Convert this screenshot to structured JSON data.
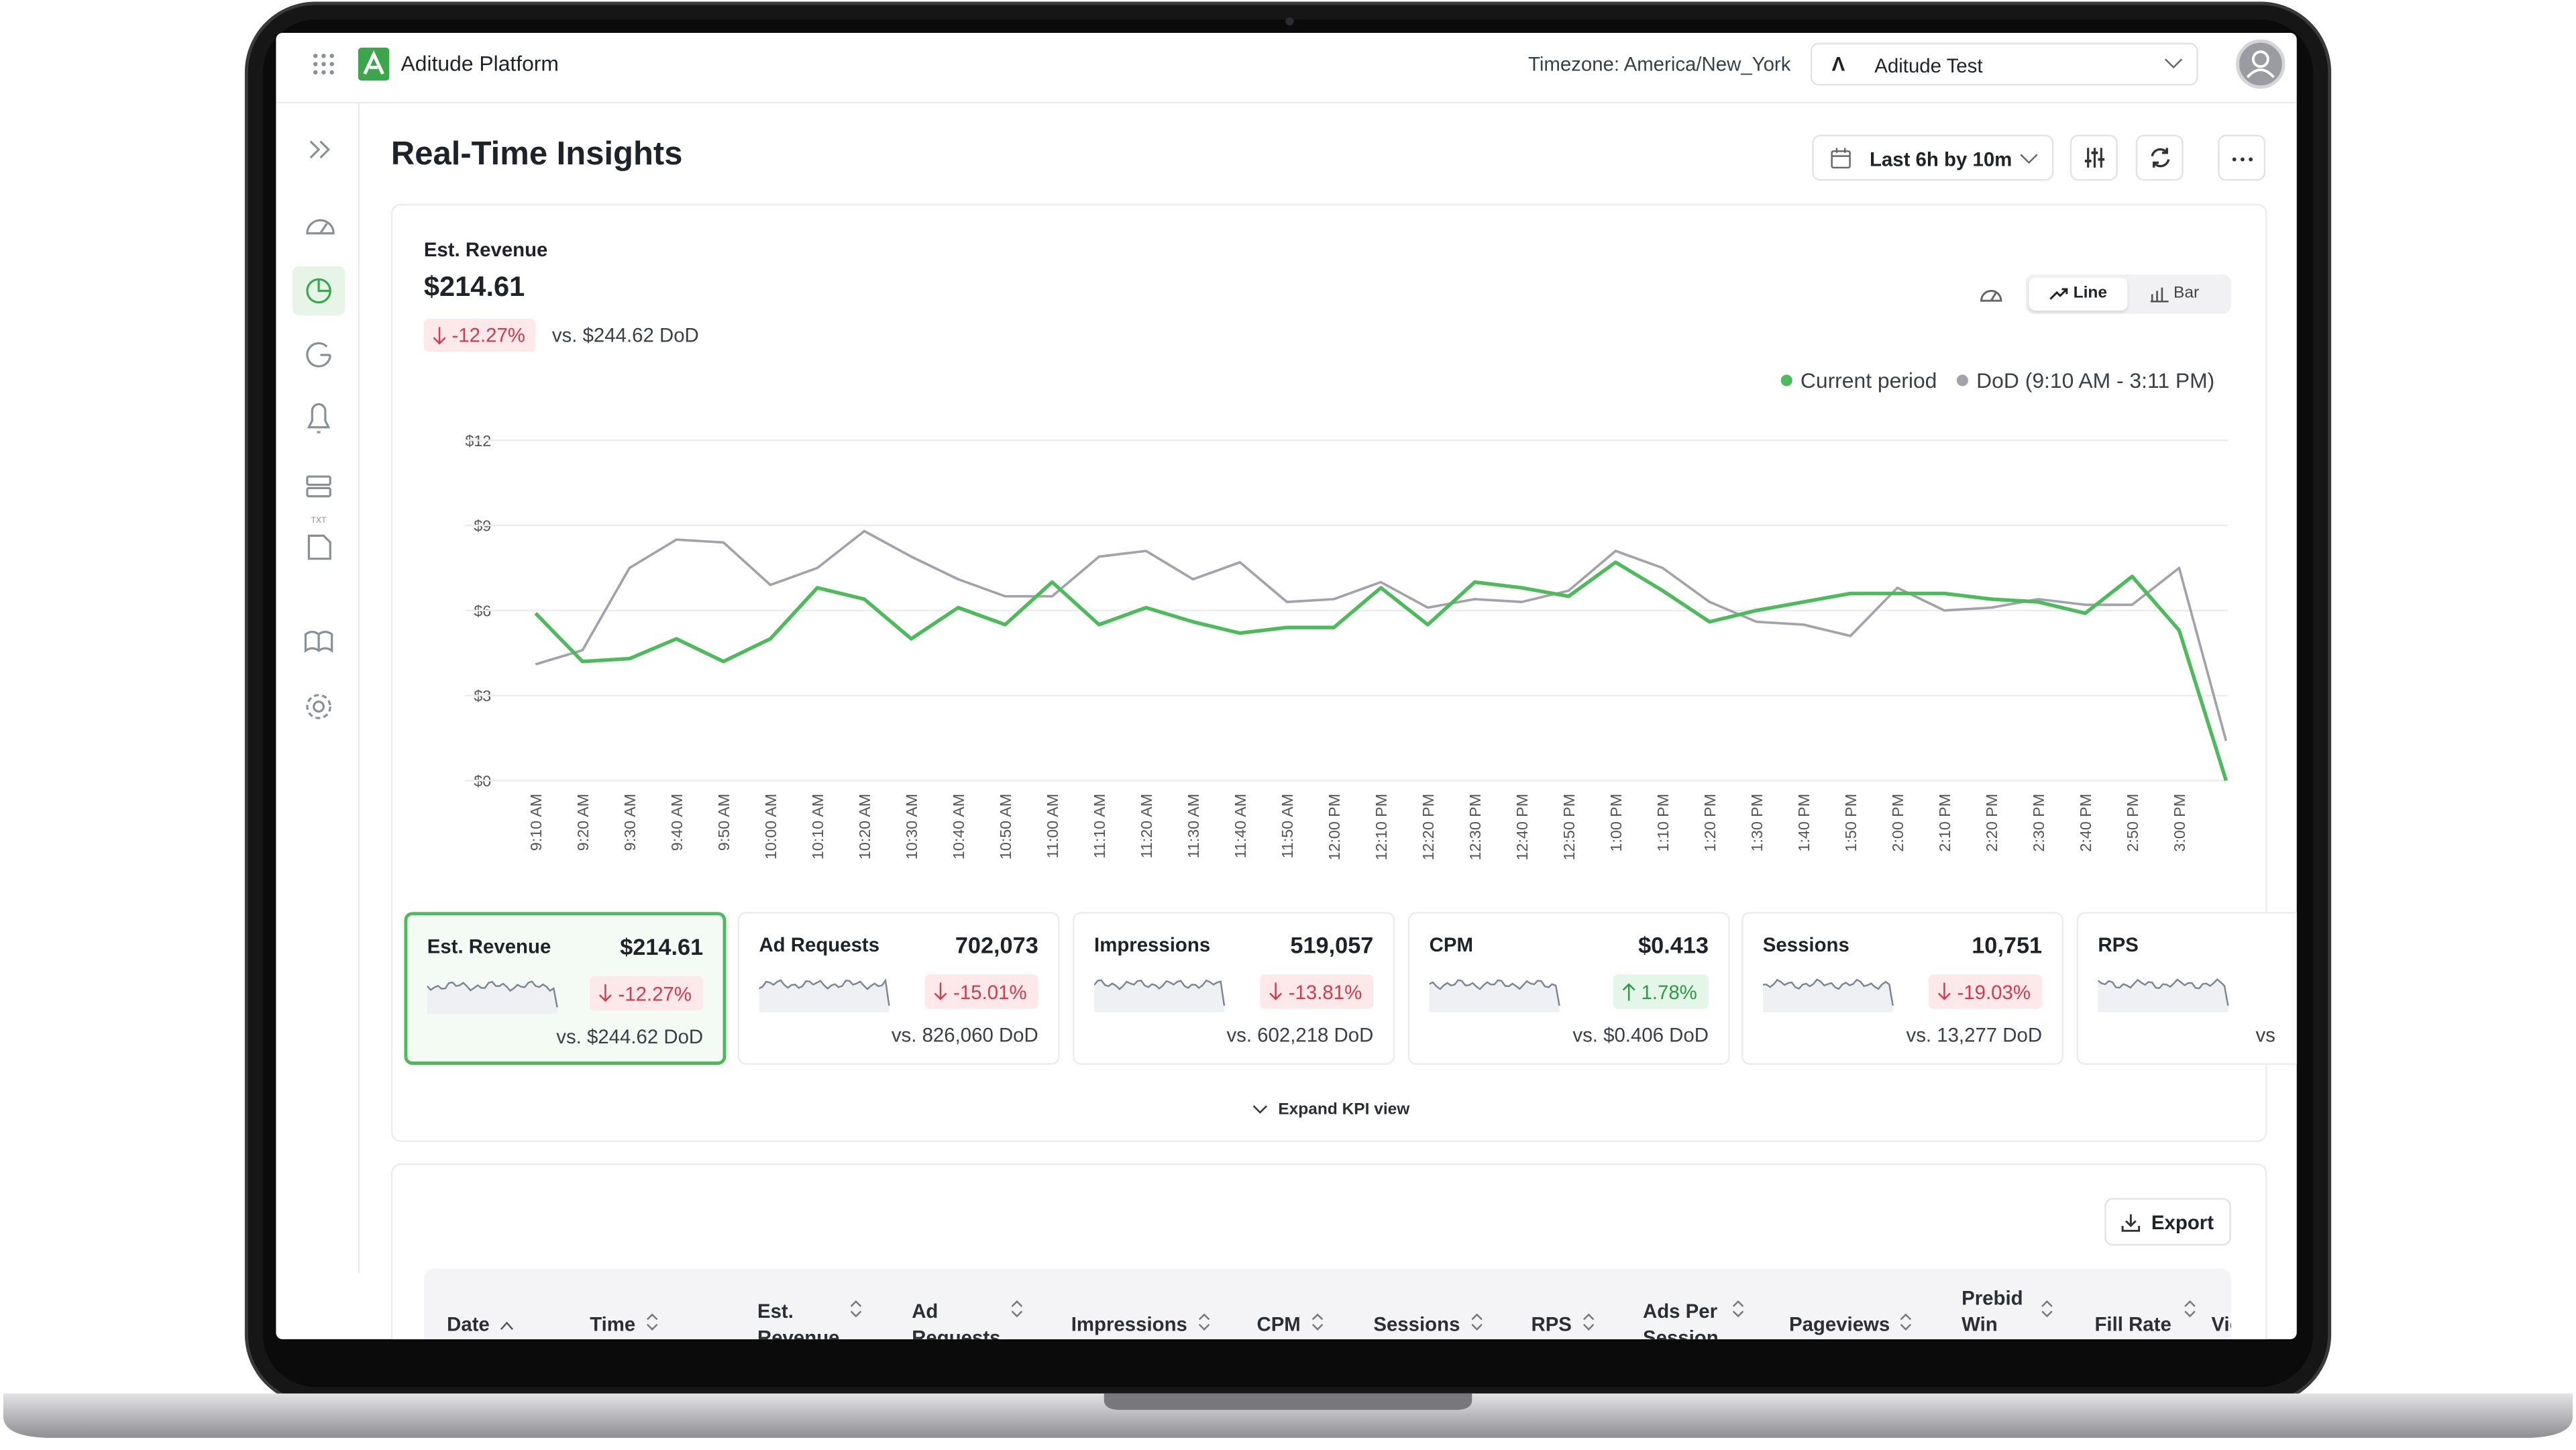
{
  "header": {
    "brand": "Aditude Platform",
    "timezone": "Timezone: America/New_York",
    "account": "Aditude Test"
  },
  "page": {
    "title": "Real-Time Insights",
    "range": "Last 6h by 10m"
  },
  "metric": {
    "label": "Est. Revenue",
    "value": "$214.61",
    "change": "-12.27%",
    "comparison": "vs. $244.62 DoD"
  },
  "toggle": [
    "Line",
    "Bar"
  ],
  "chart_data": {
    "type": "line",
    "categories": [
      "9:10 AM",
      "9:20 AM",
      "9:30 AM",
      "9:40 AM",
      "9:50 AM",
      "10:00 AM",
      "10:10 AM",
      "10:20 AM",
      "10:30 AM",
      "10:40 AM",
      "10:50 AM",
      "11:00 AM",
      "11:10 AM",
      "11:20 AM",
      "11:30 AM",
      "11:40 AM",
      "11:50 AM",
      "12:00 PM",
      "12:10 PM",
      "12:20 PM",
      "12:30 PM",
      "12:40 PM",
      "12:50 PM",
      "1:00 PM",
      "1:10 PM",
      "1:20 PM",
      "1:30 PM",
      "1:40 PM",
      "1:50 PM",
      "2:00 PM",
      "2:10 PM",
      "2:20 PM",
      "2:30 PM",
      "2:40 PM",
      "2:50 PM",
      "3:00 PM",
      null
    ],
    "series": [
      {
        "name": "Current period",
        "color": "#4cbb5a",
        "values": [
          5.9,
          4.2,
          4.3,
          5.0,
          4.2,
          5.0,
          6.8,
          6.4,
          5.0,
          6.1,
          5.5,
          7.0,
          5.5,
          6.1,
          5.6,
          5.2,
          5.4,
          5.4,
          6.8,
          5.5,
          7.0,
          6.8,
          6.5,
          7.7,
          6.7,
          5.6,
          6.0,
          6.3,
          6.6,
          6.6,
          6.6,
          6.4,
          6.3,
          5.9,
          7.2,
          5.3,
          0.0
        ]
      },
      {
        "name": "DoD (9:10 AM - 3:11 PM)",
        "color": "#a2a2aa",
        "values": [
          4.1,
          4.6,
          7.5,
          8.5,
          8.4,
          6.9,
          7.5,
          8.8,
          7.9,
          7.1,
          6.5,
          6.5,
          7.9,
          8.1,
          7.1,
          7.7,
          6.3,
          6.4,
          7.0,
          6.1,
          6.4,
          6.3,
          6.7,
          8.1,
          7.5,
          6.3,
          5.6,
          5.5,
          5.1,
          6.8,
          6.0,
          6.1,
          6.4,
          6.2,
          6.2,
          7.5,
          1.4
        ]
      }
    ],
    "ylim": [
      0,
      12
    ],
    "yticks": [
      {
        "value": 0,
        "label": "$0"
      },
      {
        "value": 3,
        "label": "$3"
      },
      {
        "value": 6,
        "label": "$6"
      },
      {
        "value": 9,
        "label": "$9"
      },
      {
        "value": 12,
        "label": "$12"
      }
    ],
    "grid": true
  },
  "kpis": [
    {
      "label": "Est. Revenue",
      "value": "$214.61",
      "change": "-12.27%",
      "direction": "down",
      "comparison": "vs. $244.62 DoD"
    },
    {
      "label": "Ad Requests",
      "value": "702,073",
      "change": "-15.01%",
      "direction": "down",
      "comparison": "vs. 826,060 DoD"
    },
    {
      "label": "Impressions",
      "value": "519,057",
      "change": "-13.81%",
      "direction": "down",
      "comparison": "vs. 602,218 DoD"
    },
    {
      "label": "CPM",
      "value": "$0.413",
      "change": "1.78%",
      "direction": "up",
      "comparison": "vs. $0.406 DoD"
    },
    {
      "label": "Sessions",
      "value": "10,751",
      "change": "-19.03%",
      "direction": "down",
      "comparison": "vs. 13,277 DoD"
    },
    {
      "label": "RPS",
      "comparison": "vs"
    }
  ],
  "expand": "Expand KPI view",
  "export": "Export",
  "table": {
    "columns": [
      "Date",
      "Time",
      "Est. Revenue",
      "Ad Requests",
      "Impressions",
      "CPM",
      "Sessions",
      "RPS",
      "Ads Per Session",
      "Pageviews",
      "Prebid Win Rate",
      "Fill Rate",
      "Viewability"
    ]
  }
}
